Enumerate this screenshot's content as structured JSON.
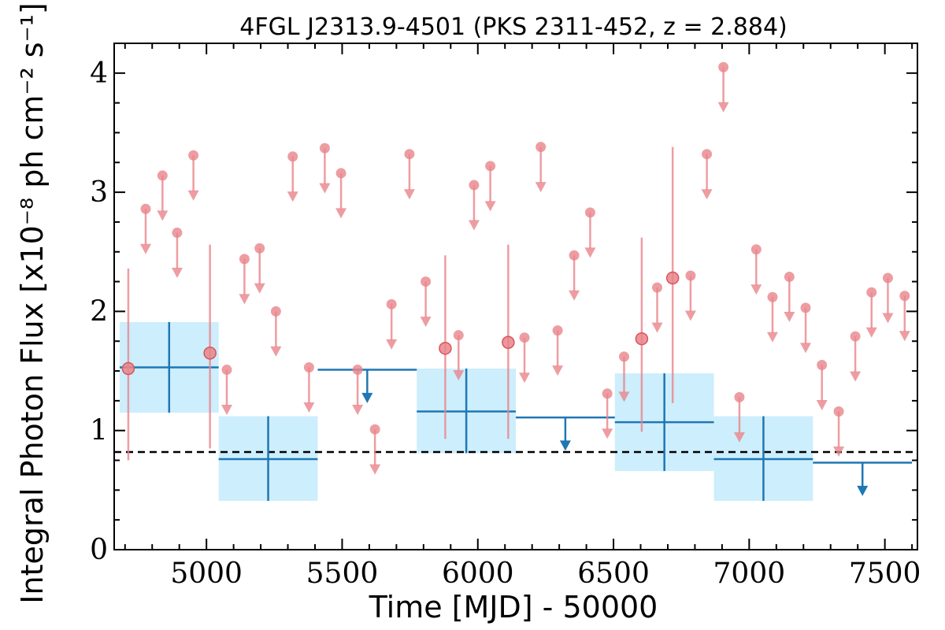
{
  "chart_data": {
    "type": "scatter",
    "title": "4FGL J2313.9-4501 (PKS 2311-452, z = 2.884)",
    "xlabel": "Time [MJD] - 50000",
    "ylabel": "Integral Photon Flux [x10⁻⁸ ph cm⁻² s⁻¹]",
    "xlim": [
      4660,
      7620
    ],
    "ylim": [
      0,
      4.25
    ],
    "xticks": [
      5000,
      5500,
      6000,
      6500,
      7000,
      7500
    ],
    "yticks": [
      0,
      1,
      2,
      3,
      4
    ],
    "reference_line": {
      "y": 0.82,
      "style": "dashed",
      "color": "#000000"
    },
    "colors": {
      "short_bin": "#e8858b",
      "long_bin": "#1f77b4",
      "long_bin_band": "#cdeefc"
    },
    "series": [
      {
        "bin": "short",
        "points": [
          {
            "x": 4712,
            "y": 1.52,
            "yerr_low": 0.77,
            "yerr_high": 0.84
          },
          {
            "x": 5013,
            "y": 1.65,
            "yerr_low": 0.8,
            "yerr_high": 0.91
          },
          {
            "x": 5880,
            "y": 1.69,
            "yerr_low": 0.76,
            "yerr_high": 0.78
          },
          {
            "x": 6112,
            "y": 1.74,
            "yerr_low": 0.81,
            "yerr_high": 0.82
          },
          {
            "x": 6604,
            "y": 1.77,
            "yerr_low": 0.78,
            "yerr_high": 0.85
          },
          {
            "x": 6718,
            "y": 2.28,
            "yerr_low": 1.05,
            "yerr_high": 1.1
          }
        ]
      },
      {
        "bin": "short",
        "upper_limits": [
          {
            "x": 4776,
            "y": 2.86
          },
          {
            "x": 4838,
            "y": 3.14
          },
          {
            "x": 4892,
            "y": 2.66
          },
          {
            "x": 4952,
            "y": 3.31
          },
          {
            "x": 5075,
            "y": 1.51
          },
          {
            "x": 5140,
            "y": 2.44
          },
          {
            "x": 5196,
            "y": 2.53
          },
          {
            "x": 5256,
            "y": 2.0
          },
          {
            "x": 5318,
            "y": 3.3
          },
          {
            "x": 5378,
            "y": 1.53
          },
          {
            "x": 5436,
            "y": 3.37
          },
          {
            "x": 5496,
            "y": 3.16
          },
          {
            "x": 5557,
            "y": 1.51
          },
          {
            "x": 5621,
            "y": 1.01
          },
          {
            "x": 5682,
            "y": 2.06
          },
          {
            "x": 5748,
            "y": 3.32
          },
          {
            "x": 5808,
            "y": 2.25
          },
          {
            "x": 5929,
            "y": 1.8
          },
          {
            "x": 5986,
            "y": 3.06
          },
          {
            "x": 6046,
            "y": 3.22
          },
          {
            "x": 6172,
            "y": 1.78
          },
          {
            "x": 6232,
            "y": 3.38
          },
          {
            "x": 6294,
            "y": 1.84
          },
          {
            "x": 6355,
            "y": 2.47
          },
          {
            "x": 6414,
            "y": 2.83
          },
          {
            "x": 6477,
            "y": 1.31
          },
          {
            "x": 6539,
            "y": 1.62
          },
          {
            "x": 6661,
            "y": 2.2
          },
          {
            "x": 6784,
            "y": 2.3
          },
          {
            "x": 6844,
            "y": 3.32
          },
          {
            "x": 6905,
            "y": 4.05
          },
          {
            "x": 6964,
            "y": 1.28
          },
          {
            "x": 7026,
            "y": 2.52
          },
          {
            "x": 7086,
            "y": 2.12
          },
          {
            "x": 7148,
            "y": 2.29
          },
          {
            "x": 7208,
            "y": 2.03
          },
          {
            "x": 7268,
            "y": 1.55
          },
          {
            "x": 7330,
            "y": 1.16
          },
          {
            "x": 7391,
            "y": 1.79
          },
          {
            "x": 7451,
            "y": 2.16
          },
          {
            "x": 7511,
            "y": 2.28
          },
          {
            "x": 7573,
            "y": 2.13
          }
        ]
      },
      {
        "bin": "long",
        "points": [
          {
            "x0": 4680,
            "x1": 5045,
            "y": 1.53,
            "ylo": 1.15,
            "yhi": 1.91
          },
          {
            "x0": 5045,
            "x1": 5410,
            "y": 0.76,
            "ylo": 0.41,
            "yhi": 1.12
          },
          {
            "x0": 5775,
            "x1": 6140,
            "y": 1.16,
            "ylo": 0.81,
            "yhi": 1.52
          },
          {
            "x0": 6505,
            "x1": 6870,
            "y": 1.07,
            "ylo": 0.66,
            "yhi": 1.48
          },
          {
            "x0": 6870,
            "x1": 7235,
            "y": 0.76,
            "ylo": 0.41,
            "yhi": 1.12
          }
        ],
        "upper_limits": [
          {
            "x0": 5410,
            "x1": 5775,
            "y": 1.51
          },
          {
            "x0": 6140,
            "x1": 6505,
            "y": 1.11
          },
          {
            "x0": 7235,
            "x1": 7600,
            "y": 0.73
          }
        ]
      }
    ]
  }
}
